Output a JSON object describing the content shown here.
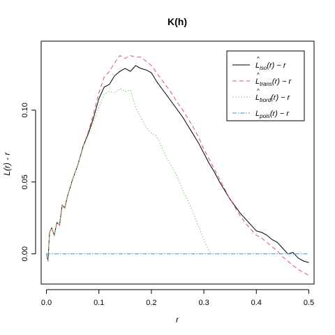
{
  "chart_data": {
    "type": "line",
    "title": "K(h)",
    "xlabel": "r",
    "ylabel": "L(r) - r",
    "xlim": [
      -0.01,
      0.51
    ],
    "ylim": [
      -0.021,
      0.148
    ],
    "xticks": [
      0.0,
      0.1,
      0.2,
      0.3,
      0.4,
      0.5
    ],
    "xtick_labels": [
      "0.0",
      "0.1",
      "0.2",
      "0.3",
      "0.4",
      "0.5"
    ],
    "yticks": [
      0.0,
      0.05,
      0.1
    ],
    "ytick_labels": [
      "0.00",
      "0.05",
      "0.10"
    ],
    "grid": false,
    "legend_position": "top-right",
    "series": [
      {
        "name_main": "L",
        "name_sub": "iso",
        "name_suffix": "(r) − r",
        "color": "#000000",
        "dash": "",
        "x": [
          0.0,
          0.003,
          0.006,
          0.01,
          0.015,
          0.02,
          0.025,
          0.03,
          0.035,
          0.04,
          0.05,
          0.06,
          0.07,
          0.08,
          0.09,
          0.1,
          0.11,
          0.12,
          0.13,
          0.14,
          0.15,
          0.16,
          0.17,
          0.18,
          0.19,
          0.2,
          0.21,
          0.22,
          0.23,
          0.24,
          0.25,
          0.26,
          0.27,
          0.28,
          0.29,
          0.3,
          0.31,
          0.32,
          0.33,
          0.34,
          0.35,
          0.36,
          0.37,
          0.38,
          0.39,
          0.4,
          0.41,
          0.42,
          0.43,
          0.44,
          0.45,
          0.46,
          0.47,
          0.48,
          0.49,
          0.5
        ],
        "y": [
          0.0,
          -0.005,
          0.015,
          0.018,
          0.013,
          0.022,
          0.02,
          0.034,
          0.032,
          0.04,
          0.052,
          0.062,
          0.075,
          0.084,
          0.095,
          0.108,
          0.116,
          0.118,
          0.124,
          0.127,
          0.129,
          0.127,
          0.131,
          0.129,
          0.128,
          0.126,
          0.12,
          0.115,
          0.11,
          0.105,
          0.1,
          0.095,
          0.089,
          0.083,
          0.077,
          0.07,
          0.063,
          0.057,
          0.05,
          0.044,
          0.038,
          0.033,
          0.028,
          0.024,
          0.02,
          0.016,
          0.015,
          0.013,
          0.01,
          0.008,
          0.004,
          0.0,
          0.001,
          -0.003,
          -0.005,
          -0.006
        ]
      },
      {
        "name_main": "L",
        "name_sub": "trans",
        "name_suffix": "(r) − r",
        "color": "#df536b",
        "dash": "6,4",
        "x": [
          0.0,
          0.003,
          0.006,
          0.01,
          0.015,
          0.02,
          0.025,
          0.03,
          0.035,
          0.04,
          0.05,
          0.06,
          0.07,
          0.08,
          0.09,
          0.1,
          0.11,
          0.12,
          0.13,
          0.14,
          0.15,
          0.16,
          0.17,
          0.18,
          0.19,
          0.2,
          0.21,
          0.22,
          0.23,
          0.24,
          0.25,
          0.26,
          0.27,
          0.28,
          0.29,
          0.3,
          0.31,
          0.32,
          0.33,
          0.34,
          0.35,
          0.36,
          0.37,
          0.38,
          0.39,
          0.4,
          0.41,
          0.42,
          0.43,
          0.44,
          0.45,
          0.46,
          0.47,
          0.48,
          0.49,
          0.5
        ],
        "y": [
          0.0,
          -0.005,
          0.015,
          0.018,
          0.013,
          0.022,
          0.02,
          0.034,
          0.032,
          0.04,
          0.052,
          0.062,
          0.075,
          0.085,
          0.098,
          0.112,
          0.123,
          0.127,
          0.133,
          0.138,
          0.136,
          0.138,
          0.137,
          0.137,
          0.134,
          0.131,
          0.126,
          0.121,
          0.116,
          0.111,
          0.105,
          0.1,
          0.094,
          0.088,
          0.081,
          0.073,
          0.066,
          0.059,
          0.052,
          0.045,
          0.038,
          0.032,
          0.026,
          0.021,
          0.017,
          0.013,
          0.011,
          0.008,
          0.005,
          0.002,
          -0.002,
          -0.005,
          -0.008,
          -0.011,
          -0.013,
          -0.015
        ]
      },
      {
        "name_main": "L",
        "name_sub": "bord",
        "name_suffix": "(r) − r",
        "color": "#61d04f",
        "dash": "1.5,2.5",
        "x": [
          0.0,
          0.003,
          0.006,
          0.01,
          0.015,
          0.02,
          0.025,
          0.03,
          0.035,
          0.04,
          0.05,
          0.06,
          0.07,
          0.08,
          0.09,
          0.1,
          0.11,
          0.12,
          0.13,
          0.14,
          0.15,
          0.16,
          0.17,
          0.18,
          0.19,
          0.2,
          0.21,
          0.22,
          0.23,
          0.24,
          0.25,
          0.26,
          0.27,
          0.28,
          0.29,
          0.3,
          0.31,
          0.315
        ],
        "y": [
          0.0,
          -0.005,
          0.015,
          0.018,
          0.013,
          0.022,
          0.02,
          0.034,
          0.032,
          0.04,
          0.052,
          0.062,
          0.074,
          0.083,
          0.092,
          0.102,
          0.111,
          0.113,
          0.112,
          0.115,
          0.113,
          0.114,
          0.102,
          0.095,
          0.088,
          0.084,
          0.082,
          0.074,
          0.066,
          0.06,
          0.053,
          0.044,
          0.037,
          0.028,
          0.019,
          0.01,
          0.002,
          0.0
        ]
      },
      {
        "name_main": "L",
        "name_sub": "pois",
        "name_suffix": "(r) − r",
        "color": "#2297e6",
        "dash": "6,2,1.5,2",
        "x": [
          0.0,
          0.5
        ],
        "y": [
          0.0,
          0.0
        ]
      }
    ]
  }
}
